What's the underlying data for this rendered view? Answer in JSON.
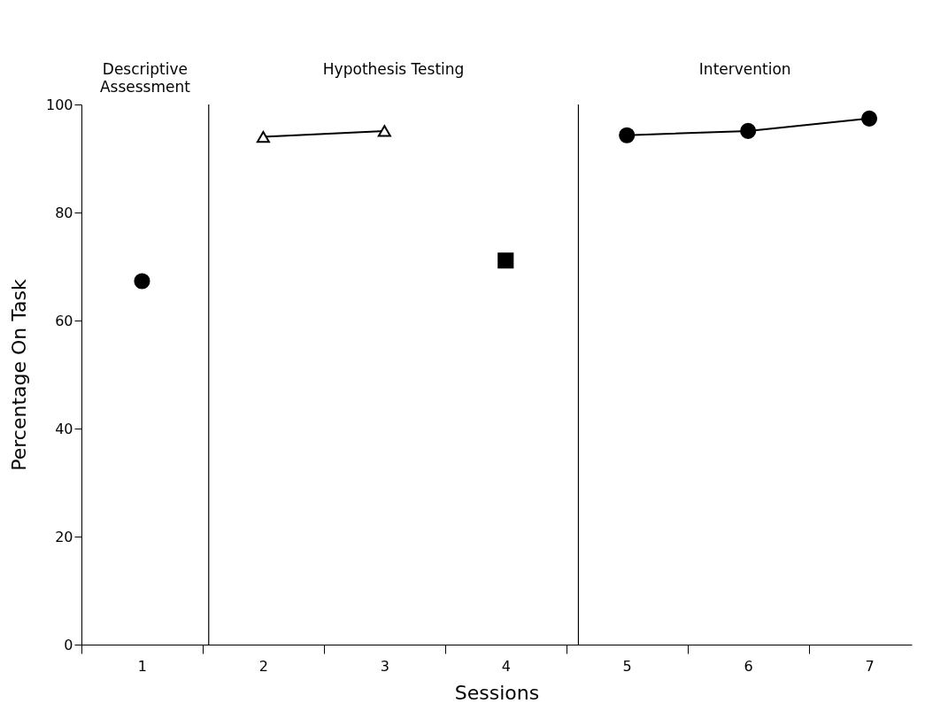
{
  "chart_data": {
    "type": "scatter",
    "xlabel": "Sessions",
    "ylabel": "Percentage On Task",
    "xlim": [
      0.5,
      7.35
    ],
    "xticks": [
      {
        "value": 0.5,
        "label": null
      },
      1,
      {
        "value": 1.5,
        "label": null
      },
      2,
      {
        "value": 2.5,
        "label": null
      },
      3,
      {
        "value": 3.5,
        "label": null
      },
      4,
      {
        "value": 4.5,
        "label": null
      },
      5,
      {
        "value": 5.5,
        "label": null
      },
      6,
      {
        "value": 6.5,
        "label": null
      },
      7
    ],
    "ylim": [
      0,
      100
    ],
    "yticks": [
      0,
      20,
      40,
      60,
      80,
      100
    ],
    "grid": false,
    "ref_lines": [
      {
        "axis": "x",
        "value": 1.55,
        "color": "#000000"
      },
      {
        "axis": "x",
        "value": 4.6,
        "color": "#000000"
      }
    ],
    "annotations": [
      "Descriptive Assessment",
      "Hypothesis Testing",
      "Intervention"
    ],
    "series": [
      {
        "marker": "circle",
        "color": "#000000",
        "x": [
          1
        ],
        "values": [
          67.3
        ]
      },
      {
        "type": "line",
        "marker": "triangle",
        "color": "#000000",
        "x": [
          2,
          3
        ],
        "values": [
          94,
          95.1
        ]
      },
      {
        "marker": "square",
        "color": "#000000",
        "x": [
          4
        ],
        "values": [
          71.1
        ]
      },
      {
        "type": "line",
        "marker": "circle",
        "color": "#000000",
        "x": [
          5,
          6,
          7
        ],
        "values": [
          94.3,
          95.1,
          97.4
        ]
      }
    ]
  }
}
